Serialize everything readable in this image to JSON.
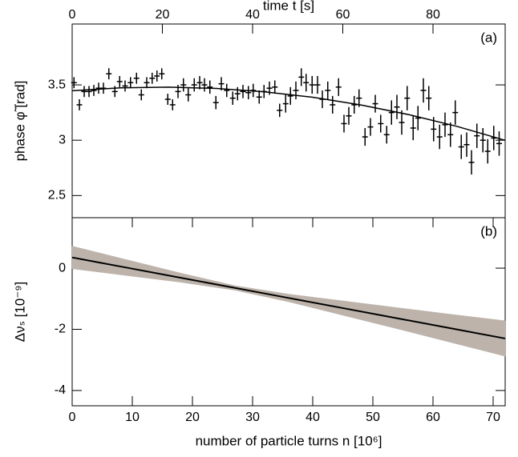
{
  "chart_data": [
    {
      "type": "errorbar",
      "panel_label": "(a)",
      "ylabel": "phase φ̃ [rad]",
      "top_axis": {
        "label": "time t [s]",
        "xlim": [
          0,
          96
        ],
        "xticks": [
          0,
          20,
          40,
          60,
          80
        ]
      },
      "xlim": [
        0,
        72
      ],
      "ylim": [
        2.3,
        4.05
      ],
      "yticks": [
        2.5,
        3,
        3.5
      ],
      "color": "#000000",
      "x": [
        0.3,
        1.2,
        2,
        2.8,
        3.6,
        4.4,
        5.2,
        6.1,
        7.1,
        7.9,
        8.8,
        9.7,
        10.7,
        11.5,
        12.4,
        13.3,
        14.1,
        14.9,
        15.9,
        16.7,
        17.6,
        18.5,
        19.3,
        20.3,
        21.2,
        22,
        22.9,
        23.9,
        24.8,
        25.7,
        26.7,
        27.5,
        28.4,
        29.3,
        30.1,
        31.1,
        31.9,
        32.8,
        33.7,
        34.5,
        35.5,
        36.3,
        37.2,
        38.1,
        38.9,
        39.9,
        40.8,
        41.6,
        42.5,
        43.3,
        44.3,
        45.2,
        46,
        46.9,
        47.7,
        48.7,
        49.6,
        50.4,
        51.3,
        52.3,
        53.1,
        54,
        54.8,
        55.7,
        56.7,
        57.5,
        58.4,
        59.3,
        60.1,
        61.1,
        62,
        62.9,
        63.7,
        64.7,
        65.6,
        66.4,
        67.3,
        68.3,
        69.1,
        70.1,
        71
      ],
      "values": [
        3.52,
        3.32,
        3.44,
        3.44,
        3.45,
        3.47,
        3.47,
        3.6,
        3.44,
        3.53,
        3.49,
        3.52,
        3.56,
        3.41,
        3.52,
        3.56,
        3.58,
        3.6,
        3.37,
        3.32,
        3.44,
        3.5,
        3.41,
        3.5,
        3.52,
        3.5,
        3.48,
        3.34,
        3.51,
        3.45,
        3.38,
        3.42,
        3.44,
        3.43,
        3.45,
        3.39,
        3.44,
        3.47,
        3.48,
        3.27,
        3.33,
        3.4,
        3.45,
        3.57,
        3.52,
        3.5,
        3.5,
        3.37,
        3.45,
        3.32,
        3.48,
        3.15,
        3.22,
        3.32,
        3.38,
        3.03,
        3.12,
        3.33,
        3.15,
        3.05,
        3.25,
        3.3,
        3.16,
        3.38,
        3.11,
        3.2,
        3.45,
        3.38,
        3.1,
        3.03,
        3.14,
        3.05,
        3.25,
        2.94,
        2.96,
        2.8,
        3.04,
        3.0,
        2.9,
        3.02,
        2.97
      ],
      "errors": [
        0.05,
        0.05,
        0.05,
        0.05,
        0.05,
        0.05,
        0.05,
        0.05,
        0.05,
        0.05,
        0.05,
        0.05,
        0.05,
        0.05,
        0.05,
        0.05,
        0.05,
        0.05,
        0.05,
        0.05,
        0.06,
        0.06,
        0.06,
        0.06,
        0.06,
        0.06,
        0.06,
        0.06,
        0.06,
        0.06,
        0.06,
        0.06,
        0.06,
        0.06,
        0.06,
        0.06,
        0.06,
        0.06,
        0.06,
        0.06,
        0.08,
        0.08,
        0.08,
        0.08,
        0.08,
        0.08,
        0.08,
        0.08,
        0.08,
        0.08,
        0.08,
        0.08,
        0.08,
        0.08,
        0.08,
        0.08,
        0.08,
        0.08,
        0.08,
        0.08,
        0.11,
        0.11,
        0.11,
        0.11,
        0.11,
        0.11,
        0.11,
        0.11,
        0.11,
        0.11,
        0.11,
        0.11,
        0.11,
        0.11,
        0.11,
        0.11,
        0.11,
        0.11,
        0.11,
        0.11,
        0.11
      ],
      "fit": {
        "x": [
          0,
          8,
          16,
          24,
          32,
          40,
          48,
          56,
          64,
          72
        ],
        "values": [
          3.447,
          3.473,
          3.48,
          3.468,
          3.437,
          3.388,
          3.319,
          3.231,
          3.125,
          2.999
        ]
      }
    },
    {
      "type": "band",
      "panel_label": "(b)",
      "ylabel": "Δνₛ [10⁻⁹]",
      "xlabel": "number of particle turns n [10⁶]",
      "xlim": [
        0,
        72
      ],
      "xticks": [
        0,
        10,
        20,
        30,
        40,
        50,
        60,
        70
      ],
      "ylim": [
        -4.5,
        1.65
      ],
      "yticks": [
        -4,
        -2,
        0
      ],
      "color": "#000000",
      "band_color": "#bdb3ab",
      "x": [
        0,
        9,
        18,
        27,
        36,
        45,
        54,
        63,
        72
      ],
      "values": [
        0.35,
        0.019,
        -0.312,
        -0.644,
        -0.975,
        -1.306,
        -1.637,
        -1.968,
        -2.3
      ],
      "upper": [
        0.72,
        0.28,
        -0.16,
        -0.57,
        -0.85,
        -1.07,
        -1.29,
        -1.51,
        -1.72
      ],
      "lower": [
        -0.02,
        -0.24,
        -0.46,
        -0.72,
        -1.1,
        -1.54,
        -1.98,
        -2.43,
        -2.88
      ]
    }
  ]
}
